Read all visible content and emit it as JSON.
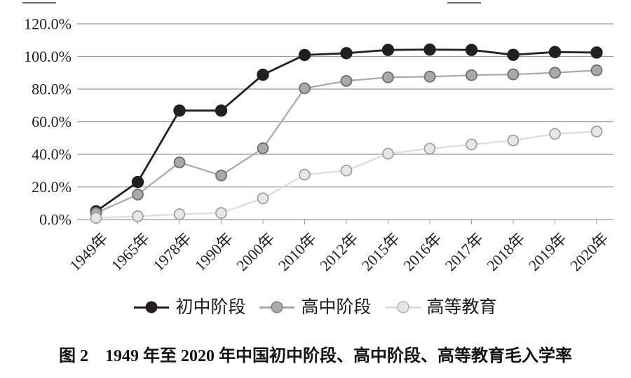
{
  "figure": {
    "caption": "图 2　1949 年至 2020 年中国初中阶段、高中阶段、高等教育毛入学率"
  },
  "chart_data": {
    "type": "line",
    "title": "",
    "xlabel": "",
    "ylabel": "",
    "categories": [
      "1949年",
      "1965年",
      "1978年",
      "1990年",
      "2000年",
      "2010年",
      "2012年",
      "2015年",
      "2016年",
      "2017年",
      "2018年",
      "2019年",
      "2020年"
    ],
    "series": [
      {
        "key": "junior-secondary",
        "name": "初中阶段",
        "values": [
          5.0,
          23.0,
          66.8,
          66.8,
          88.8,
          100.9,
          102.0,
          104.0,
          104.2,
          104.0,
          101.0,
          102.7,
          102.4
        ],
        "line_color": "#231f20",
        "marker_fill": "#231f20",
        "marker_stroke": "#231f20"
      },
      {
        "key": "senior-secondary",
        "name": "高中阶段",
        "values": [
          4.0,
          15.3,
          35.0,
          27.0,
          43.7,
          80.5,
          85.0,
          87.2,
          87.6,
          88.5,
          89.0,
          90.0,
          91.5
        ],
        "line_color": "#a8a8a8",
        "marker_fill": "#a9a9a9",
        "marker_stroke": "#6d6d6d"
      },
      {
        "key": "higher-education",
        "name": "高等教育",
        "values": [
          1.0,
          2.0,
          3.2,
          4.0,
          13.0,
          27.5,
          30.0,
          40.4,
          43.5,
          46.0,
          48.5,
          52.5,
          54.0
        ],
        "line_color": "#dcdcdc",
        "marker_fill": "#e6e6e6",
        "marker_stroke": "#999999"
      }
    ],
    "ylim": [
      0,
      120
    ],
    "ytick_step": 20,
    "ytick_labels": [
      "0.0%",
      "20.0%",
      "40.0%",
      "60.0%",
      "80.0%",
      "100.0%",
      "120.0%"
    ],
    "grid": true,
    "grid_color": "#9b9b9b",
    "axis_text_color": "#1f1f1f",
    "legend_position": "bottom"
  }
}
